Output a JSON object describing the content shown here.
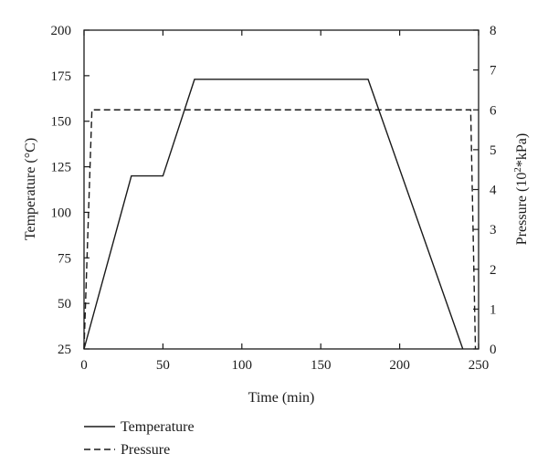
{
  "chart_data": {
    "type": "line",
    "title": "",
    "xlabel": "Time (min)",
    "ylabel_left": "Temperature (°C)",
    "ylabel_right_parts": [
      "Pressure (10",
      "2",
      "*kPa)"
    ],
    "xlim": [
      0,
      250
    ],
    "ylim_left": [
      25,
      200
    ],
    "ylim_right": [
      0,
      8
    ],
    "x_ticks": [
      "0",
      "50",
      "100",
      "150",
      "200",
      "250"
    ],
    "y_left_ticks": [
      "25",
      "50",
      "75",
      "100",
      "125",
      "150",
      "175",
      "200"
    ],
    "y_right_ticks": [
      "0",
      "1",
      "2",
      "3",
      "4",
      "5",
      "6",
      "7",
      "8"
    ],
    "grid": false,
    "legend_position": "bottom-left",
    "series": [
      {
        "name": "Temperature",
        "axis": "left",
        "style": "solid",
        "color": "#1a1a1a",
        "x": [
          0,
          30,
          50,
          70,
          180,
          240
        ],
        "y": [
          25,
          120,
          120,
          173,
          173,
          25
        ]
      },
      {
        "name": "Pressure",
        "axis": "right",
        "style": "dashed",
        "color": "#1a1a1a",
        "x": [
          0,
          5,
          245,
          248
        ],
        "y": [
          0,
          6,
          6,
          0
        ]
      }
    ]
  }
}
